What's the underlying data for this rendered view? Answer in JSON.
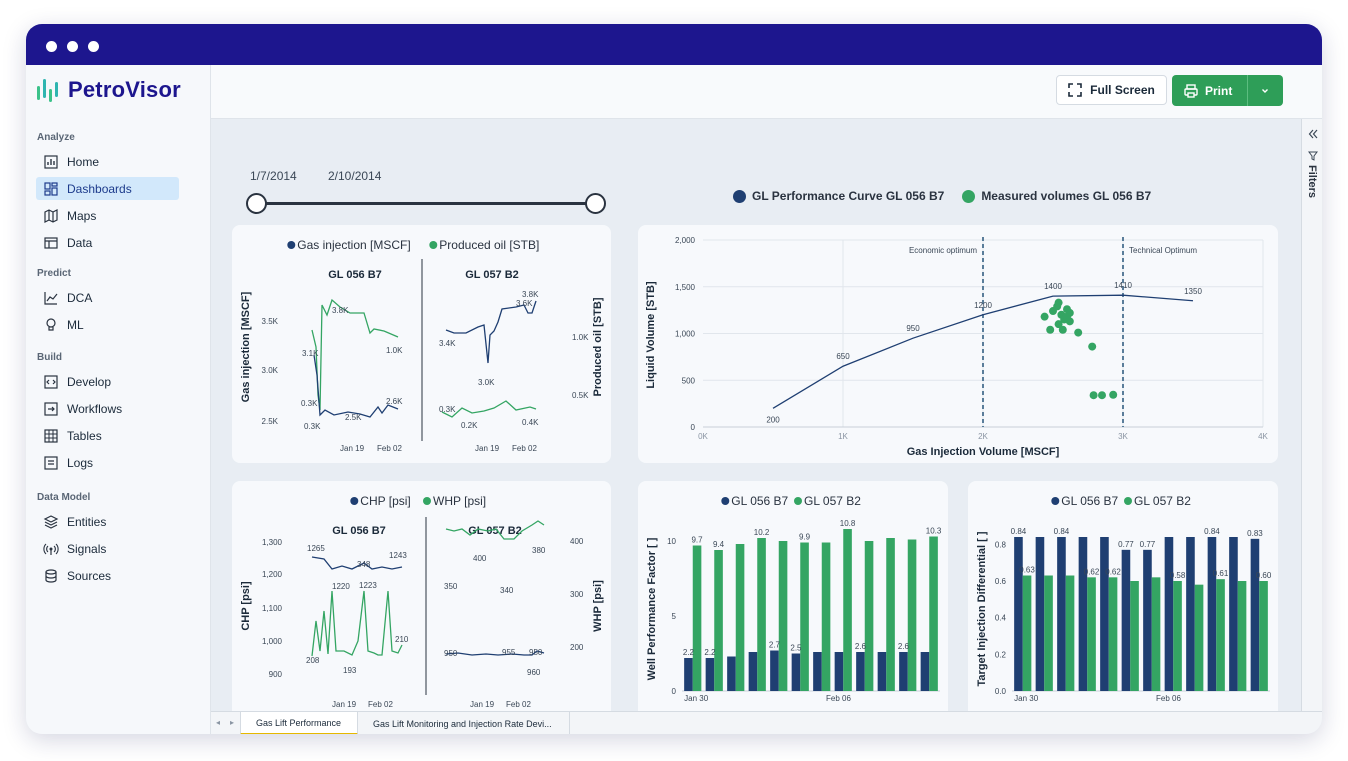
{
  "app": {
    "name": "PetroVisor"
  },
  "sidebar": {
    "sections": [
      {
        "title": "Analyze",
        "items": [
          {
            "label": "Home",
            "icon": "bar-chart-icon"
          },
          {
            "label": "Dashboards",
            "icon": "dashboard-grid-icon",
            "active": true
          },
          {
            "label": "Maps",
            "icon": "map-icon"
          },
          {
            "label": "Data",
            "icon": "table-icon"
          }
        ]
      },
      {
        "title": "Predict",
        "items": [
          {
            "label": "DCA",
            "icon": "line-chart-icon"
          },
          {
            "label": "ML",
            "icon": "lightbulb-icon"
          }
        ]
      },
      {
        "title": "Build",
        "items": [
          {
            "label": "Develop",
            "icon": "code-icon"
          },
          {
            "label": "Workflows",
            "icon": "workflow-icon"
          },
          {
            "label": "Tables",
            "icon": "grid-table-icon"
          },
          {
            "label": "Logs",
            "icon": "log-icon"
          }
        ]
      },
      {
        "title": "Data Model",
        "items": [
          {
            "label": "Entities",
            "icon": "layers-icon"
          },
          {
            "label": "Signals",
            "icon": "signal-icon"
          },
          {
            "label": "Sources",
            "icon": "database-icon"
          }
        ]
      }
    ]
  },
  "toolbar": {
    "full_screen_label": "Full Screen",
    "print_label": "Print"
  },
  "filters_label": "Filters",
  "date_range": {
    "start": "1/7/2014",
    "end": "2/10/2014"
  },
  "tabs": [
    {
      "label": "Gas Lift Performance",
      "active": true
    },
    {
      "label": "Gas Lift Monitoring and Injection Rate Devi..."
    }
  ],
  "colors": {
    "navy": "#1f3f72",
    "green": "#34a563",
    "titlebar": "#1d168e"
  },
  "chart_data": [
    {
      "type": "line",
      "legend": [
        "Gas injection [MSCF]",
        "Produced oil [STB]"
      ],
      "ylabel_left": "Gas injection [MSCF]",
      "ylabel_right": "Produced oil [STB]",
      "yticks_left": [
        "3.5K",
        "3.0K",
        "2.5K"
      ],
      "yticks_right": [
        "1.0K",
        "0.5K"
      ],
      "panels": [
        {
          "title": "GL 056 B7",
          "xticks": [
            "Jan 19",
            "Feb 02"
          ],
          "labels": [
            "3.8K",
            "3.1K",
            "1.0K",
            "0.3K",
            "0.3K",
            "2.5K",
            "2.6K"
          ]
        },
        {
          "title": "GL 057 B2",
          "xticks": [
            "Jan 19",
            "Feb 02"
          ],
          "labels": [
            "3.8K",
            "3.6K",
            "3.4K",
            "3.0K",
            "0.3K",
            "0.2K",
            "0.4K"
          ]
        }
      ]
    },
    {
      "type": "line",
      "title": "",
      "legend": [
        "GL Performance Curve GL 056 B7",
        "Measured volumes GL 056 B7"
      ],
      "xlabel": "Gas Injection Volume [MSCF]",
      "ylabel": "Liquid Volume [STB]",
      "xticks": [
        "0K",
        "1K",
        "2K",
        "3K",
        "4K"
      ],
      "yticks": [
        "0",
        "500",
        "1,000",
        "1,500",
        "2,000"
      ],
      "xlim": [
        0,
        4000
      ],
      "ylim": [
        0,
        2000
      ],
      "curve": [
        {
          "x": 500,
          "y": 200
        },
        {
          "x": 1000,
          "y": 650
        },
        {
          "x": 1500,
          "y": 950
        },
        {
          "x": 2000,
          "y": 1200
        },
        {
          "x": 2500,
          "y": 1400
        },
        {
          "x": 3000,
          "y": 1410
        },
        {
          "x": 3500,
          "y": 1350
        }
      ],
      "curve_labels": [
        "200",
        "650",
        "950",
        "1200",
        "1400",
        "1410",
        "1350"
      ],
      "measured": [
        {
          "x": 2440,
          "y": 1180
        },
        {
          "x": 2500,
          "y": 1240
        },
        {
          "x": 2530,
          "y": 1290
        },
        {
          "x": 2560,
          "y": 1200
        },
        {
          "x": 2580,
          "y": 1150
        },
        {
          "x": 2600,
          "y": 1260
        },
        {
          "x": 2620,
          "y": 1130
        },
        {
          "x": 2540,
          "y": 1100
        },
        {
          "x": 2480,
          "y": 1040
        },
        {
          "x": 2570,
          "y": 1040
        },
        {
          "x": 2680,
          "y": 1010
        },
        {
          "x": 2780,
          "y": 860
        },
        {
          "x": 2600,
          "y": 1180
        },
        {
          "x": 2540,
          "y": 1330
        },
        {
          "x": 2620,
          "y": 1220
        },
        {
          "x": 2790,
          "y": 340
        },
        {
          "x": 2850,
          "y": 340
        },
        {
          "x": 2930,
          "y": 345
        }
      ],
      "annotations": [
        {
          "x": 2000,
          "text": "Economic optimum"
        },
        {
          "x": 3000,
          "text": "Technical Optimum"
        }
      ]
    },
    {
      "type": "line",
      "legend": [
        "CHP [psi]",
        "WHP [psi]"
      ],
      "ylabel_left": "CHP [psi]",
      "ylabel_right": "WHP [psi]",
      "yticks_left": [
        "1,300",
        "1,200",
        "1,100",
        "1,000",
        "900"
      ],
      "yticks_right": [
        "400",
        "300",
        "200"
      ],
      "panels": [
        {
          "title": "GL 056 B7",
          "xticks": [
            "Jan 19",
            "Feb 02"
          ],
          "labels": [
            "1265",
            "348",
            "1243",
            "1220",
            "1223",
            "210",
            "208",
            "193"
          ]
        },
        {
          "title": "GL 057 B2",
          "xticks": [
            "Jan 19",
            "Feb 02"
          ],
          "labels": [
            "400",
            "380",
            "350",
            "340",
            "950",
            "955",
            "950",
            "960"
          ]
        }
      ]
    },
    {
      "type": "bar",
      "legend": [
        "GL 056 B7",
        "GL 057 B2"
      ],
      "ylabel": "Well Performance Factor [ ]",
      "yticks": [
        "0",
        "5",
        "10"
      ],
      "ylim": [
        0,
        11
      ],
      "xticks": [
        "Jan 30",
        "Feb 06"
      ],
      "series": [
        {
          "name": "GL 056 B7",
          "values": [
            2.2,
            2.2,
            2.3,
            2.6,
            2.7,
            2.5,
            2.6,
            2.6,
            2.6,
            2.6,
            2.6,
            2.6
          ]
        },
        {
          "name": "GL 057 B2",
          "values": [
            9.7,
            9.4,
            9.8,
            10.2,
            10,
            9.9,
            9.9,
            10.8,
            10,
            10.2,
            10.1,
            10.3
          ]
        }
      ],
      "value_labels": [
        "2.2",
        "2.2",
        "2.7",
        "2.5",
        "2.6",
        "2.6",
        "9.7",
        "9.4",
        "10.2",
        "9.9",
        "10.8",
        "10.3"
      ]
    },
    {
      "type": "bar",
      "legend": [
        "GL 056 B7",
        "GL 057 B2"
      ],
      "ylabel": "Target Injection Differential [ ]",
      "yticks": [
        "0.0",
        "0.2",
        "0.4",
        "0.6",
        "0.8"
      ],
      "ylim": [
        0,
        0.9
      ],
      "xticks": [
        "Jan 30",
        "Feb 06"
      ],
      "series": [
        {
          "name": "GL 056 B7",
          "values": [
            0.84,
            0.84,
            0.84,
            0.84,
            0.84,
            0.77,
            0.77,
            0.84,
            0.84,
            0.84,
            0.84,
            0.83
          ]
        },
        {
          "name": "GL 057 B2",
          "values": [
            0.63,
            0.63,
            0.63,
            0.62,
            0.62,
            0.6,
            0.62,
            0.6,
            0.58,
            0.61,
            0.6,
            0.6
          ]
        }
      ],
      "value_labels": [
        "0.84",
        "0.84",
        "0.77",
        "0.77",
        "0.84",
        "0.83",
        "0.63",
        "0.62",
        "0.62",
        "0.58",
        "0.61",
        "0.60"
      ]
    }
  ]
}
